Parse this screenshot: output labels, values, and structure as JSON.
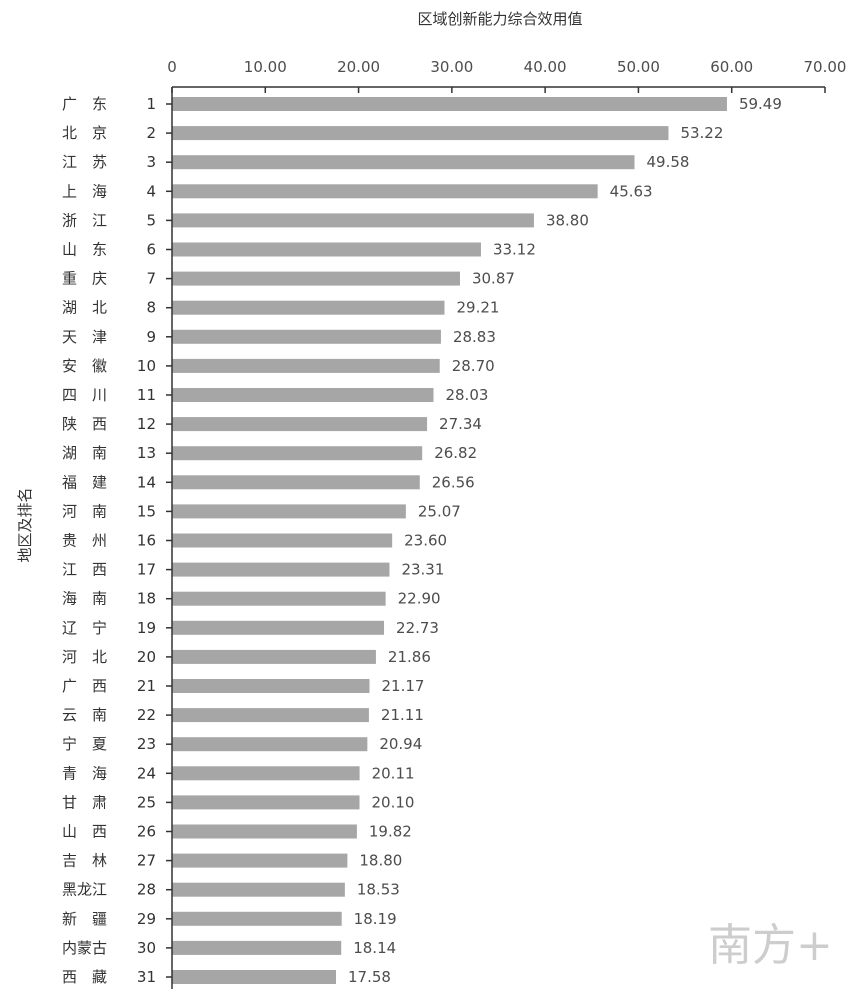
{
  "chart_data": {
    "type": "bar",
    "orientation": "horizontal",
    "title": "",
    "xlabel": "区域创新能力综合效用值",
    "ylabel": "地区及排名",
    "xlim": [
      0,
      70
    ],
    "xticks": [
      "0",
      "10.00",
      "20.00",
      "30.00",
      "40.00",
      "50.00",
      "60.00",
      "70.00"
    ],
    "grid": false,
    "colors": {
      "bar": "#a6a6a6",
      "axis": "#333333"
    },
    "rows": [
      {
        "region": "广　东",
        "rank": "1",
        "value": 59.49,
        "label": "59.49"
      },
      {
        "region": "北　京",
        "rank": "2",
        "value": 53.22,
        "label": "53.22"
      },
      {
        "region": "江　苏",
        "rank": "3",
        "value": 49.58,
        "label": "49.58"
      },
      {
        "region": "上　海",
        "rank": "4",
        "value": 45.63,
        "label": "45.63"
      },
      {
        "region": "浙　江",
        "rank": "5",
        "value": 38.8,
        "label": "38.80"
      },
      {
        "region": "山　东",
        "rank": "6",
        "value": 33.12,
        "label": "33.12"
      },
      {
        "region": "重　庆",
        "rank": "7",
        "value": 30.87,
        "label": "30.87"
      },
      {
        "region": "湖　北",
        "rank": "8",
        "value": 29.21,
        "label": "29.21"
      },
      {
        "region": "天　津",
        "rank": "9",
        "value": 28.83,
        "label": "28.83"
      },
      {
        "region": "安　徽",
        "rank": "10",
        "value": 28.7,
        "label": "28.70"
      },
      {
        "region": "四　川",
        "rank": "11",
        "value": 28.03,
        "label": "28.03"
      },
      {
        "region": "陕　西",
        "rank": "12",
        "value": 27.34,
        "label": "27.34"
      },
      {
        "region": "湖　南",
        "rank": "13",
        "value": 26.82,
        "label": "26.82"
      },
      {
        "region": "福　建",
        "rank": "14",
        "value": 26.56,
        "label": "26.56"
      },
      {
        "region": "河　南",
        "rank": "15",
        "value": 25.07,
        "label": "25.07"
      },
      {
        "region": "贵　州",
        "rank": "16",
        "value": 23.6,
        "label": "23.60"
      },
      {
        "region": "江　西",
        "rank": "17",
        "value": 23.31,
        "label": "23.31"
      },
      {
        "region": "海　南",
        "rank": "18",
        "value": 22.9,
        "label": "22.90"
      },
      {
        "region": "辽　宁",
        "rank": "19",
        "value": 22.73,
        "label": "22.73"
      },
      {
        "region": "河　北",
        "rank": "20",
        "value": 21.86,
        "label": "21.86"
      },
      {
        "region": "广　西",
        "rank": "21",
        "value": 21.17,
        "label": "21.17"
      },
      {
        "region": "云　南",
        "rank": "22",
        "value": 21.11,
        "label": "21.11"
      },
      {
        "region": "宁　夏",
        "rank": "23",
        "value": 20.94,
        "label": "20.94"
      },
      {
        "region": "青　海",
        "rank": "24",
        "value": 20.11,
        "label": "20.11"
      },
      {
        "region": "甘　肃",
        "rank": "25",
        "value": 20.1,
        "label": "20.10"
      },
      {
        "region": "山　西",
        "rank": "26",
        "value": 19.82,
        "label": "19.82"
      },
      {
        "region": "吉　林",
        "rank": "27",
        "value": 18.8,
        "label": "18.80"
      },
      {
        "region": "黑龙江",
        "rank": "28",
        "value": 18.53,
        "label": "18.53"
      },
      {
        "region": "新　疆",
        "rank": "29",
        "value": 18.19,
        "label": "18.19"
      },
      {
        "region": "内蒙古",
        "rank": "30",
        "value": 18.14,
        "label": "18.14"
      },
      {
        "region": "西　藏",
        "rank": "31",
        "value": 17.58,
        "label": "17.58"
      }
    ]
  },
  "watermark": {
    "text": "南方+"
  }
}
